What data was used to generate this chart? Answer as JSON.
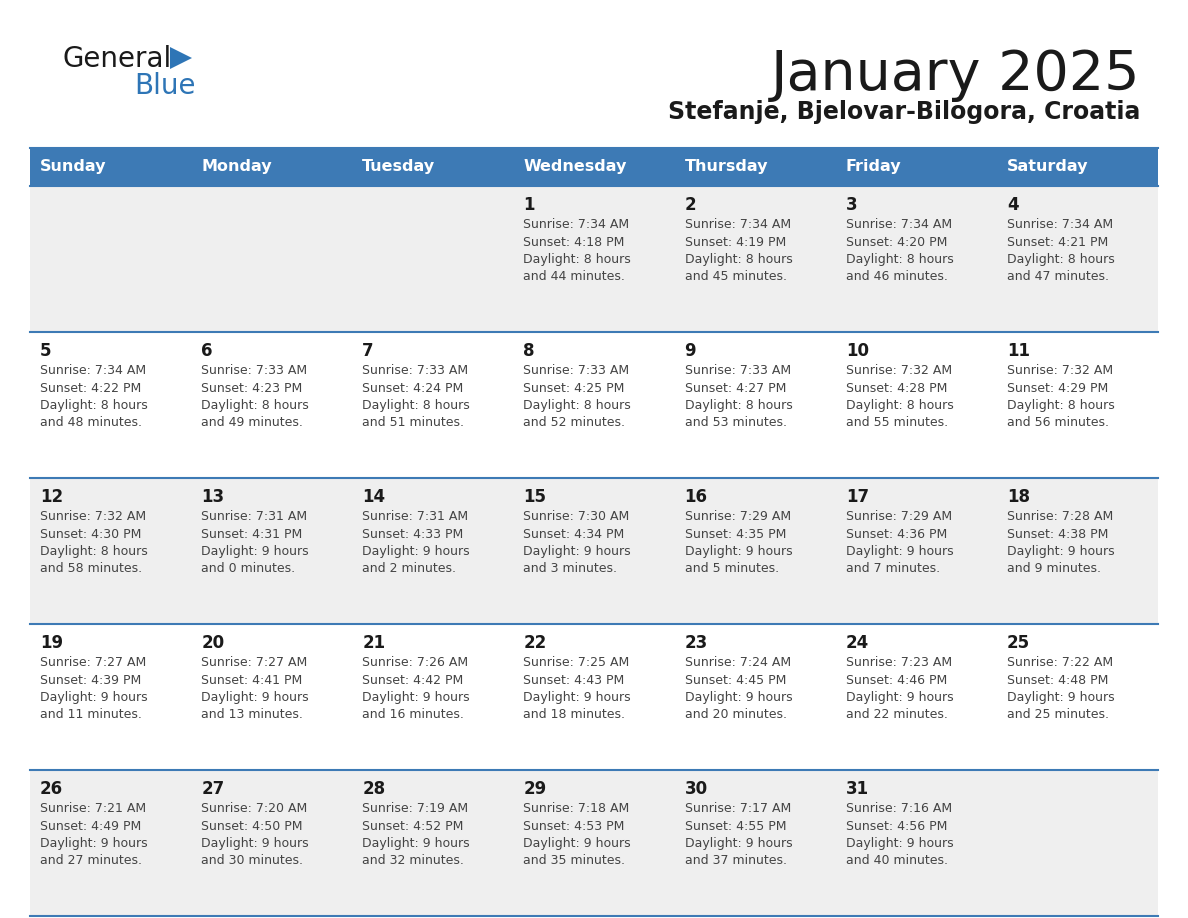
{
  "title": "January 2025",
  "subtitle": "Stefanje, Bjelovar-Bilogora, Croatia",
  "header_color": "#3D7AB5",
  "header_text_color": "#FFFFFF",
  "cell_bg_white": "#FFFFFF",
  "cell_bg_gray": "#EFEFEF",
  "day_names": [
    "Sunday",
    "Monday",
    "Tuesday",
    "Wednesday",
    "Thursday",
    "Friday",
    "Saturday"
  ],
  "title_color": "#1a1a1a",
  "subtitle_color": "#1a1a1a",
  "line_color": "#3D7AB5",
  "text_color": "#444444",
  "day_number_color": "#1a1a1a",
  "logo_black": "#1a1a1a",
  "logo_blue": "#2E75B6",
  "calendar_data": [
    [
      {
        "day": 0,
        "info": ""
      },
      {
        "day": 0,
        "info": ""
      },
      {
        "day": 0,
        "info": ""
      },
      {
        "day": 1,
        "info": "Sunrise: 7:34 AM\nSunset: 4:18 PM\nDaylight: 8 hours\nand 44 minutes."
      },
      {
        "day": 2,
        "info": "Sunrise: 7:34 AM\nSunset: 4:19 PM\nDaylight: 8 hours\nand 45 minutes."
      },
      {
        "day": 3,
        "info": "Sunrise: 7:34 AM\nSunset: 4:20 PM\nDaylight: 8 hours\nand 46 minutes."
      },
      {
        "day": 4,
        "info": "Sunrise: 7:34 AM\nSunset: 4:21 PM\nDaylight: 8 hours\nand 47 minutes."
      }
    ],
    [
      {
        "day": 5,
        "info": "Sunrise: 7:34 AM\nSunset: 4:22 PM\nDaylight: 8 hours\nand 48 minutes."
      },
      {
        "day": 6,
        "info": "Sunrise: 7:33 AM\nSunset: 4:23 PM\nDaylight: 8 hours\nand 49 minutes."
      },
      {
        "day": 7,
        "info": "Sunrise: 7:33 AM\nSunset: 4:24 PM\nDaylight: 8 hours\nand 51 minutes."
      },
      {
        "day": 8,
        "info": "Sunrise: 7:33 AM\nSunset: 4:25 PM\nDaylight: 8 hours\nand 52 minutes."
      },
      {
        "day": 9,
        "info": "Sunrise: 7:33 AM\nSunset: 4:27 PM\nDaylight: 8 hours\nand 53 minutes."
      },
      {
        "day": 10,
        "info": "Sunrise: 7:32 AM\nSunset: 4:28 PM\nDaylight: 8 hours\nand 55 minutes."
      },
      {
        "day": 11,
        "info": "Sunrise: 7:32 AM\nSunset: 4:29 PM\nDaylight: 8 hours\nand 56 minutes."
      }
    ],
    [
      {
        "day": 12,
        "info": "Sunrise: 7:32 AM\nSunset: 4:30 PM\nDaylight: 8 hours\nand 58 minutes."
      },
      {
        "day": 13,
        "info": "Sunrise: 7:31 AM\nSunset: 4:31 PM\nDaylight: 9 hours\nand 0 minutes."
      },
      {
        "day": 14,
        "info": "Sunrise: 7:31 AM\nSunset: 4:33 PM\nDaylight: 9 hours\nand 2 minutes."
      },
      {
        "day": 15,
        "info": "Sunrise: 7:30 AM\nSunset: 4:34 PM\nDaylight: 9 hours\nand 3 minutes."
      },
      {
        "day": 16,
        "info": "Sunrise: 7:29 AM\nSunset: 4:35 PM\nDaylight: 9 hours\nand 5 minutes."
      },
      {
        "day": 17,
        "info": "Sunrise: 7:29 AM\nSunset: 4:36 PM\nDaylight: 9 hours\nand 7 minutes."
      },
      {
        "day": 18,
        "info": "Sunrise: 7:28 AM\nSunset: 4:38 PM\nDaylight: 9 hours\nand 9 minutes."
      }
    ],
    [
      {
        "day": 19,
        "info": "Sunrise: 7:27 AM\nSunset: 4:39 PM\nDaylight: 9 hours\nand 11 minutes."
      },
      {
        "day": 20,
        "info": "Sunrise: 7:27 AM\nSunset: 4:41 PM\nDaylight: 9 hours\nand 13 minutes."
      },
      {
        "day": 21,
        "info": "Sunrise: 7:26 AM\nSunset: 4:42 PM\nDaylight: 9 hours\nand 16 minutes."
      },
      {
        "day": 22,
        "info": "Sunrise: 7:25 AM\nSunset: 4:43 PM\nDaylight: 9 hours\nand 18 minutes."
      },
      {
        "day": 23,
        "info": "Sunrise: 7:24 AM\nSunset: 4:45 PM\nDaylight: 9 hours\nand 20 minutes."
      },
      {
        "day": 24,
        "info": "Sunrise: 7:23 AM\nSunset: 4:46 PM\nDaylight: 9 hours\nand 22 minutes."
      },
      {
        "day": 25,
        "info": "Sunrise: 7:22 AM\nSunset: 4:48 PM\nDaylight: 9 hours\nand 25 minutes."
      }
    ],
    [
      {
        "day": 26,
        "info": "Sunrise: 7:21 AM\nSunset: 4:49 PM\nDaylight: 9 hours\nand 27 minutes."
      },
      {
        "day": 27,
        "info": "Sunrise: 7:20 AM\nSunset: 4:50 PM\nDaylight: 9 hours\nand 30 minutes."
      },
      {
        "day": 28,
        "info": "Sunrise: 7:19 AM\nSunset: 4:52 PM\nDaylight: 9 hours\nand 32 minutes."
      },
      {
        "day": 29,
        "info": "Sunrise: 7:18 AM\nSunset: 4:53 PM\nDaylight: 9 hours\nand 35 minutes."
      },
      {
        "day": 30,
        "info": "Sunrise: 7:17 AM\nSunset: 4:55 PM\nDaylight: 9 hours\nand 37 minutes."
      },
      {
        "day": 31,
        "info": "Sunrise: 7:16 AM\nSunset: 4:56 PM\nDaylight: 9 hours\nand 40 minutes."
      },
      {
        "day": 0,
        "info": ""
      }
    ]
  ]
}
